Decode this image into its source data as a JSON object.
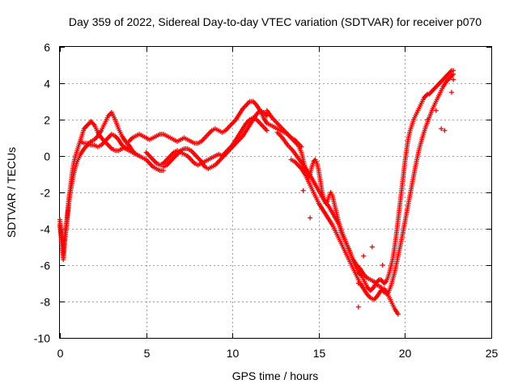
{
  "chart_data": {
    "type": "scatter",
    "title": "Day 359 of 2022, Sidereal Day-to-day VTEC variation (SDTVAR) for receiver p070",
    "xlabel": "GPS time / hours",
    "ylabel": "SDTVAR / TECUs",
    "xlim": [
      0,
      25
    ],
    "ylim": [
      -10,
      6
    ],
    "xticks": [
      0,
      5,
      10,
      15,
      20,
      25
    ],
    "yticks": [
      -10,
      -8,
      -6,
      -4,
      -2,
      0,
      2,
      4,
      6
    ],
    "grid": true,
    "marker": "+",
    "color": "#ff0000",
    "series": [
      {
        "name": "track-a",
        "x": [
          0.0,
          0.1,
          0.2,
          0.3,
          0.4,
          0.5,
          0.6,
          0.7,
          0.8,
          0.9,
          1.0,
          1.1,
          1.2,
          1.3,
          1.4,
          1.5,
          1.6,
          1.7,
          1.8,
          1.9,
          2.0,
          2.2,
          2.4,
          2.6,
          2.8,
          3.0,
          3.2,
          3.4,
          3.6,
          3.8,
          4.0
        ],
        "y": [
          -3.5,
          -4.8,
          -5.7,
          -4.5,
          -3.8,
          -2.5,
          -1.8,
          -1.0,
          -0.4,
          0.0,
          0.3,
          0.6,
          0.9,
          1.2,
          1.5,
          1.6,
          1.7,
          1.8,
          1.9,
          1.8,
          1.7,
          1.3,
          1.0,
          0.8,
          0.6,
          0.4,
          0.3,
          0.3,
          0.4,
          0.5,
          0.4
        ]
      },
      {
        "name": "track-b",
        "x": [
          0.0,
          0.1,
          0.2,
          0.3,
          0.4,
          0.5,
          0.6,
          0.7,
          0.8,
          0.9,
          1.0,
          1.2,
          1.4,
          1.6,
          1.8,
          2.0,
          2.2,
          2.4,
          2.6,
          2.8,
          3.0,
          3.2,
          3.4,
          3.6,
          3.8,
          4.0,
          4.2,
          4.4,
          4.6
        ],
        "y": [
          -3.8,
          -4.6,
          -5.4,
          -4.2,
          -3.5,
          -2.8,
          -2.0,
          -1.5,
          -1.0,
          -0.6,
          -0.3,
          0.1,
          0.4,
          0.6,
          0.8,
          0.9,
          1.1,
          1.4,
          1.8,
          2.2,
          2.4,
          2.0,
          1.5,
          1.1,
          0.8,
          0.6,
          0.3,
          0.1,
          0.0
        ]
      },
      {
        "name": "track-c",
        "x": [
          1.2,
          1.4,
          1.6,
          1.8,
          2.0,
          2.2,
          2.4,
          2.6,
          2.8,
          3.0,
          3.2,
          3.4,
          3.6,
          3.8,
          4.0,
          4.2,
          4.4,
          4.6,
          4.8,
          5.0,
          5.2,
          5.4,
          5.6,
          5.8,
          6.0
        ],
        "y": [
          0.8,
          0.7,
          0.7,
          0.6,
          0.6,
          0.5,
          0.6,
          0.8,
          1.0,
          1.2,
          1.1,
          0.9,
          0.6,
          0.4,
          0.3,
          0.2,
          0.1,
          0.0,
          -0.1,
          -0.2,
          -0.4,
          -0.6,
          -0.7,
          -0.8,
          -0.8
        ]
      },
      {
        "name": "track-d",
        "x": [
          4.0,
          4.2,
          4.4,
          4.6,
          4.8,
          5.0,
          5.2,
          5.4,
          5.6,
          5.8,
          6.0,
          6.2,
          6.4,
          6.6,
          6.8,
          7.0,
          7.2,
          7.4,
          7.6,
          7.8,
          8.0,
          8.2,
          8.4,
          8.6,
          8.8,
          9.0,
          9.2,
          9.4,
          9.6,
          9.8,
          10.0,
          10.2,
          10.4,
          10.6,
          10.8,
          11.0,
          11.2,
          11.4,
          11.6,
          11.8,
          12.0,
          12.2,
          12.4,
          12.6,
          12.8,
          13.0,
          13.2,
          13.4,
          13.6,
          13.8,
          14.0
        ],
        "y": [
          0.8,
          1.0,
          1.1,
          1.2,
          1.1,
          1.0,
          0.9,
          1.0,
          1.1,
          1.2,
          1.2,
          1.1,
          1.0,
          0.9,
          0.8,
          0.9,
          1.0,
          0.9,
          0.8,
          0.7,
          0.7,
          0.8,
          1.0,
          1.2,
          1.4,
          1.5,
          1.4,
          1.3,
          1.4,
          1.6,
          1.8,
          2.0,
          2.3,
          2.6,
          2.8,
          3.0,
          3.0,
          2.8,
          2.5,
          2.1,
          1.8,
          1.7,
          1.6,
          1.5,
          1.4,
          1.3,
          1.2,
          1.0,
          0.9,
          0.7,
          0.5
        ]
      },
      {
        "name": "track-e",
        "x": [
          5.0,
          5.2,
          5.4,
          5.6,
          5.8,
          6.0,
          6.2,
          6.4,
          6.6,
          6.8,
          7.0,
          7.2,
          7.4,
          7.6,
          7.8,
          8.0,
          8.2,
          8.4,
          8.6,
          8.8,
          9.0,
          9.2,
          9.4,
          9.6,
          9.8,
          10.0,
          10.2,
          10.4,
          10.6,
          10.8,
          11.0,
          11.2,
          11.4,
          11.6,
          11.8,
          12.0
        ],
        "y": [
          0.2,
          0.0,
          -0.2,
          -0.4,
          -0.5,
          -0.4,
          -0.2,
          0.0,
          0.2,
          0.3,
          0.2,
          0.1,
          0.0,
          -0.2,
          -0.4,
          -0.5,
          -0.4,
          -0.3,
          -0.2,
          -0.1,
          0.0,
          0.1,
          0.0,
          0.2,
          0.4,
          0.6,
          0.9,
          1.2,
          1.5,
          1.8,
          2.0,
          2.1,
          2.0,
          1.8,
          1.6,
          1.4
        ]
      },
      {
        "name": "track-f",
        "x": [
          6.0,
          6.2,
          6.4,
          6.6,
          6.8,
          7.0,
          7.2,
          7.4,
          7.6,
          7.8,
          8.0,
          8.2,
          8.4,
          8.6,
          8.8,
          9.0,
          9.2,
          9.4,
          9.6,
          9.8,
          10.0,
          10.2,
          10.4,
          10.6,
          10.8,
          11.0,
          11.2,
          11.4,
          11.6,
          11.8,
          12.0
        ],
        "y": [
          -0.6,
          -0.5,
          -0.3,
          -0.1,
          0.1,
          0.3,
          0.4,
          0.4,
          0.3,
          0.1,
          -0.1,
          -0.3,
          -0.6,
          -0.7,
          -0.6,
          -0.5,
          -0.3,
          -0.1,
          0.1,
          0.3,
          0.5,
          0.7,
          0.9,
          1.1,
          1.4,
          1.7,
          2.0,
          2.3,
          2.5,
          2.4,
          2.2
        ]
      },
      {
        "name": "track-g",
        "x": [
          12.0,
          12.3,
          12.6,
          12.9,
          13.2,
          13.5,
          13.8,
          14.0,
          14.1,
          14.2,
          14.3,
          14.4,
          14.5,
          14.6,
          14.7,
          14.8,
          14.9,
          15.0,
          15.1,
          15.2,
          15.3,
          15.4,
          15.5,
          15.6,
          15.7,
          15.8,
          15.9,
          16.0,
          16.1,
          16.2,
          16.3,
          16.4,
          16.5,
          16.6,
          16.7,
          16.8,
          16.9,
          17.0,
          17.1,
          17.2,
          17.3,
          17.4,
          17.5,
          17.6,
          17.7,
          17.8,
          17.9,
          18.0,
          18.1,
          18.2,
          18.3,
          18.4,
          18.5,
          18.6,
          18.7,
          18.8,
          18.9,
          19.0,
          19.1,
          19.2,
          19.3,
          19.4,
          19.5,
          19.6,
          19.7,
          19.8,
          19.9,
          20.0,
          20.1,
          20.2,
          20.3,
          20.4,
          20.5,
          20.6,
          20.7,
          20.8,
          20.9,
          21.0,
          21.1,
          21.2,
          21.3,
          21.4,
          21.5,
          21.6,
          21.7,
          21.8,
          21.9,
          22.0,
          22.1,
          22.2,
          22.3,
          22.4,
          22.5,
          22.6,
          22.7,
          22.8
        ],
        "y": [
          2.5,
          2.1,
          1.8,
          1.5,
          1.2,
          0.9,
          0.6,
          0.2,
          -0.2,
          -0.6,
          -1.0,
          -1.2,
          -1.0,
          -0.6,
          -0.3,
          -0.2,
          -0.4,
          -0.8,
          -1.4,
          -2.0,
          -2.4,
          -2.6,
          -2.5,
          -2.2,
          -2.0,
          -2.2,
          -2.6,
          -3.0,
          -3.4,
          -3.8,
          -4.2,
          -4.4,
          -4.6,
          -4.8,
          -5.0,
          -5.2,
          -5.5,
          -5.8,
          -6.0,
          -6.2,
          -6.4,
          -6.5,
          -6.6,
          -6.8,
          -7.0,
          -7.2,
          -7.3,
          -7.4,
          -7.3,
          -7.2,
          -7.0,
          -6.9,
          -6.8,
          -6.8,
          -6.9,
          -7.0,
          -6.9,
          -6.7,
          -6.4,
          -6.0,
          -5.6,
          -5.0,
          -4.3,
          -3.5,
          -2.7,
          -1.9,
          -1.1,
          -0.3,
          0.4,
          1.0,
          1.4,
          1.7,
          2.0,
          2.2,
          2.4,
          2.6,
          2.8,
          3.0,
          3.2,
          3.3,
          3.4,
          3.4,
          3.5,
          3.6,
          3.7,
          3.8,
          3.9,
          4.0,
          4.1,
          4.2,
          4.3,
          4.4,
          4.5,
          4.6,
          4.7,
          4.7
        ]
      },
      {
        "name": "track-h",
        "x": [
          12.6,
          12.9,
          13.2,
          13.5,
          13.8,
          14.1,
          14.4,
          14.7,
          15.0,
          15.3,
          15.6,
          15.9,
          16.2,
          16.4,
          16.6,
          16.8,
          17.0,
          17.2,
          17.4,
          17.6,
          17.8,
          18.0,
          18.2,
          18.4,
          18.6,
          18.8,
          19.0,
          19.2,
          19.4,
          19.6,
          19.8,
          20.0,
          20.2,
          20.4,
          20.6,
          20.8,
          21.0,
          21.2,
          21.4,
          21.6,
          21.8,
          22.0,
          22.2,
          22.4,
          22.6,
          22.8
        ],
        "y": [
          1.3,
          1.0,
          0.6,
          0.3,
          -0.1,
          -0.5,
          -0.9,
          -1.4,
          -1.9,
          -2.4,
          -2.8,
          -3.3,
          -3.8,
          -4.3,
          -4.8,
          -5.3,
          -5.7,
          -6.0,
          -6.2,
          -6.5,
          -6.7,
          -6.8,
          -6.9,
          -7.1,
          -7.2,
          -7.5,
          -7.6,
          -7.1,
          -6.4,
          -5.5,
          -4.6,
          -3.6,
          -2.6,
          -1.6,
          -0.6,
          0.3,
          1.0,
          1.6,
          2.1,
          2.6,
          3.0,
          3.4,
          3.8,
          4.1,
          4.3,
          4.5
        ]
      },
      {
        "name": "track-i",
        "x": [
          13.4,
          13.6,
          13.8,
          14.0,
          14.2,
          14.4,
          14.6,
          14.8,
          15.0,
          15.2,
          15.4,
          15.6,
          15.8,
          16.0,
          16.2,
          16.4,
          16.6,
          16.8,
          17.0,
          17.2,
          17.4,
          17.6,
          17.8,
          18.0,
          18.2,
          18.4,
          18.6,
          18.8,
          19.0,
          19.2,
          19.4,
          19.6
        ],
        "y": [
          -0.2,
          -0.3,
          -0.5,
          -0.7,
          -1.0,
          -1.4,
          -1.8,
          -2.2,
          -2.6,
          -2.9,
          -3.2,
          -3.5,
          -3.8,
          -4.2,
          -4.6,
          -5.0,
          -5.4,
          -5.8,
          -6.2,
          -6.6,
          -7.0,
          -7.3,
          -7.6,
          -7.8,
          -7.9,
          -7.7,
          -7.4,
          -7.3,
          -7.6,
          -8.0,
          -8.4,
          -8.7
        ]
      },
      {
        "name": "outliers",
        "x": [
          14.1,
          14.5,
          17.3,
          17.3,
          17.6,
          18.1,
          18.7,
          21.3,
          21.8,
          22.1,
          22.3,
          22.7,
          22.8
        ],
        "y": [
          -1.9,
          -3.4,
          -8.3,
          -7.0,
          -5.5,
          -5.0,
          -6.0,
          2.0,
          2.5,
          1.5,
          1.4,
          3.5,
          4.2
        ]
      }
    ]
  }
}
